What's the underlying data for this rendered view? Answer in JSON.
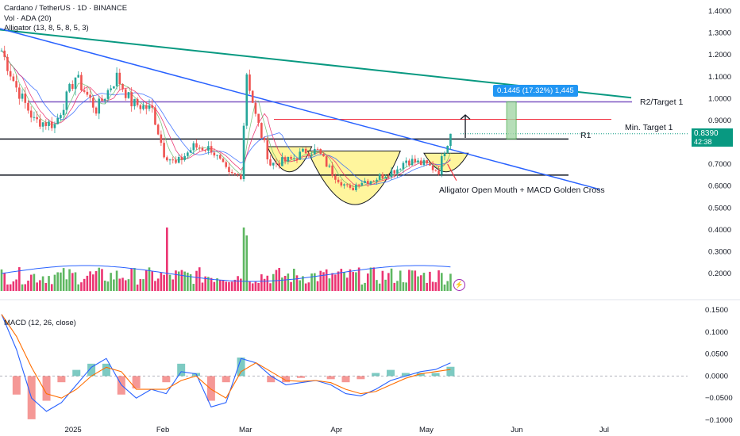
{
  "header": {
    "symbol": "Cardano / TetherUS · 1D · BINANCE",
    "vol": "Vol · ADA (20)",
    "alligator": "Alligator (13, 8, 5, 8, 5, 3)",
    "macd": "MACD (12, 26, close)"
  },
  "annotations": {
    "r2": "R2/Target 1",
    "min_target": "Min. Target 1",
    "r1": "R1",
    "cross": "Alligator Open Mouth + MACD Golden Cross",
    "measure": "0.1445 (17.32%) 1,445"
  },
  "price_tag": {
    "price": "0.8390",
    "countdown": "42:38"
  },
  "colors": {
    "up": "#26a69a",
    "down": "#ef5350",
    "vol_up": "#4caf50",
    "vol_down": "#e91e63",
    "trend_teal": "#089981",
    "trend_blue": "#2962ff",
    "r2": "#7e57c2",
    "target": "#f23645",
    "shape": "#fff59d",
    "macd_line": "#2962ff",
    "signal_line": "#ff6d00",
    "tag_bg": "#089981",
    "measure_bg": "#2196f3"
  },
  "chart_data": [
    {
      "type": "candlestick",
      "title": "",
      "x_ticks": [
        "2025",
        "Feb",
        "Mar",
        "Apr",
        "May",
        "Jun",
        "Jul"
      ],
      "y_ticks": [
        "1.4000",
        "1.3000",
        "1.2000",
        "1.1000",
        "1.0000",
        "0.9000",
        "0.8000",
        "0.7000",
        "0.6000",
        "0.5000",
        "0.4000",
        "0.3000",
        "0.2000"
      ],
      "ylim": [
        0.14,
        1.42
      ],
      "levels": {
        "r2_target": 0.985,
        "min_target": 0.905,
        "r1": 0.815,
        "support": 0.65,
        "last_close": 0.839
      },
      "pattern": "cup and handle",
      "close_path": [
        [
          "2024-12-09",
          1.22
        ],
        [
          "2024-12-14",
          1.05
        ],
        [
          "2024-12-20",
          0.9
        ],
        [
          "2024-12-27",
          0.88
        ],
        [
          "2025-01-03",
          1.1
        ],
        [
          "2025-01-10",
          0.95
        ],
        [
          "2025-01-17",
          1.1
        ],
        [
          "2025-01-22",
          0.98
        ],
        [
          "2025-01-29",
          0.95
        ],
        [
          "2025-02-02",
          0.75
        ],
        [
          "2025-02-06",
          0.7
        ],
        [
          "2025-02-12",
          0.78
        ],
        [
          "2025-02-18",
          0.77
        ],
        [
          "2025-02-24",
          0.65
        ],
        [
          "2025-02-28",
          0.65
        ],
        [
          "2025-03-02",
          1.12
        ],
        [
          "2025-03-05",
          0.92
        ],
        [
          "2025-03-10",
          0.7
        ],
        [
          "2025-03-17",
          0.72
        ],
        [
          "2025-03-22",
          0.76
        ],
        [
          "2025-03-26",
          0.76
        ],
        [
          "2025-03-31",
          0.66
        ],
        [
          "2025-04-06",
          0.58
        ],
        [
          "2025-04-09",
          0.62
        ],
        [
          "2025-04-14",
          0.63
        ],
        [
          "2025-04-22",
          0.68
        ],
        [
          "2025-04-25",
          0.72
        ],
        [
          "2025-05-01",
          0.7
        ],
        [
          "2025-05-06",
          0.67
        ],
        [
          "2025-05-08",
          0.77
        ],
        [
          "2025-05-10",
          0.839
        ]
      ]
    },
    {
      "type": "bar",
      "title": "Vol · ADA (20)",
      "note": "volume spikes near 2025-02-03 and 2025-03-02"
    },
    {
      "type": "line",
      "title": "MACD (12, 26, close)",
      "y_ticks": [
        "0.1500",
        "0.1000",
        "0.0500",
        "0.0000",
        "−0.0500",
        "−0.1000"
      ],
      "ylim": [
        -0.1,
        0.16
      ],
      "series": [
        {
          "name": "",
          "values": [
            0.14,
            0.06,
            -0.05,
            -0.08,
            -0.06,
            -0.02,
            0.02,
            0.04,
            -0.02,
            -0.05,
            -0.03,
            -0.04,
            0.01,
            0.005,
            -0.07,
            -0.06,
            0.04,
            0.03,
            0.0,
            -0.02,
            -0.015,
            -0.01,
            -0.02,
            -0.04,
            -0.045,
            -0.03,
            -0.01,
            0.0,
            0.01,
            0.015,
            0.03
          ]
        },
        {
          "name": "",
          "values": [
            0.14,
            0.09,
            0.02,
            -0.04,
            -0.05,
            -0.03,
            0.0,
            0.02,
            0.01,
            -0.03,
            -0.03,
            -0.03,
            -0.01,
            0.0,
            -0.03,
            -0.05,
            0.01,
            0.03,
            0.01,
            -0.01,
            -0.012,
            -0.01,
            -0.015,
            -0.03,
            -0.04,
            -0.035,
            -0.02,
            -0.005,
            0.005,
            0.01,
            0.015
          ]
        }
      ]
    }
  ]
}
